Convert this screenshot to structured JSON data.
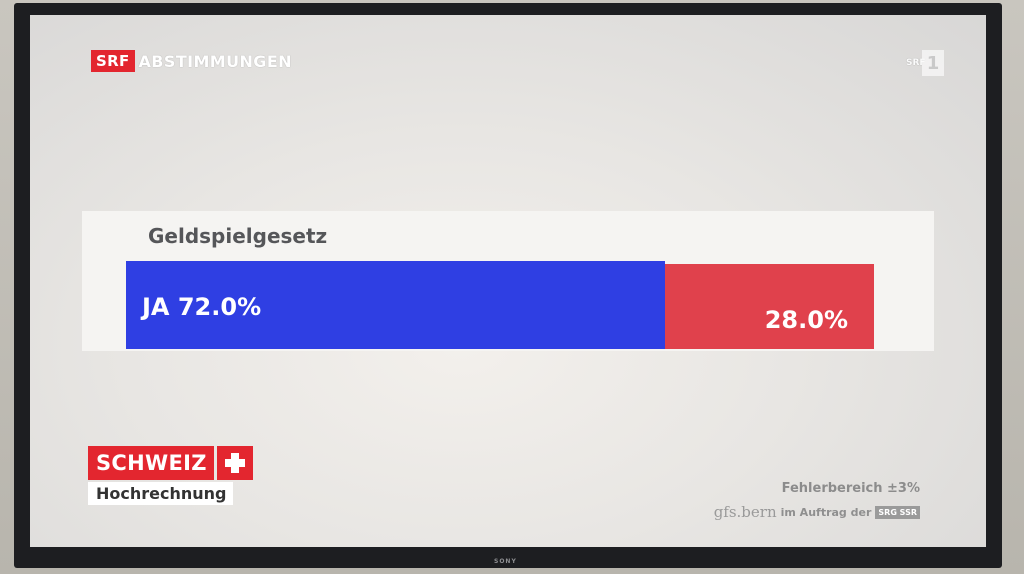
{
  "header": {
    "brand_badge": "SRF",
    "program_title": "ABSTIMMUNGEN"
  },
  "channel": {
    "label": "SRF",
    "number": "1"
  },
  "vote": {
    "topic": "Geldspielgesetz",
    "yes_label": "JA 72.0%",
    "yes_share": 72.0,
    "no_label": "28.0%",
    "no_share": 28.0,
    "colors": {
      "yes": "#2f3fe3",
      "no": "#e0414c"
    }
  },
  "region": {
    "name": "SCHWEIZ",
    "subtitle": "Hochrechnung"
  },
  "footer": {
    "error_margin": "Fehlerbereich ±3%",
    "institute": "gfs.bern",
    "commission": "im Auftrag der",
    "client_badge": "SRG SSR"
  },
  "tv": {
    "brand": "SONY"
  }
}
